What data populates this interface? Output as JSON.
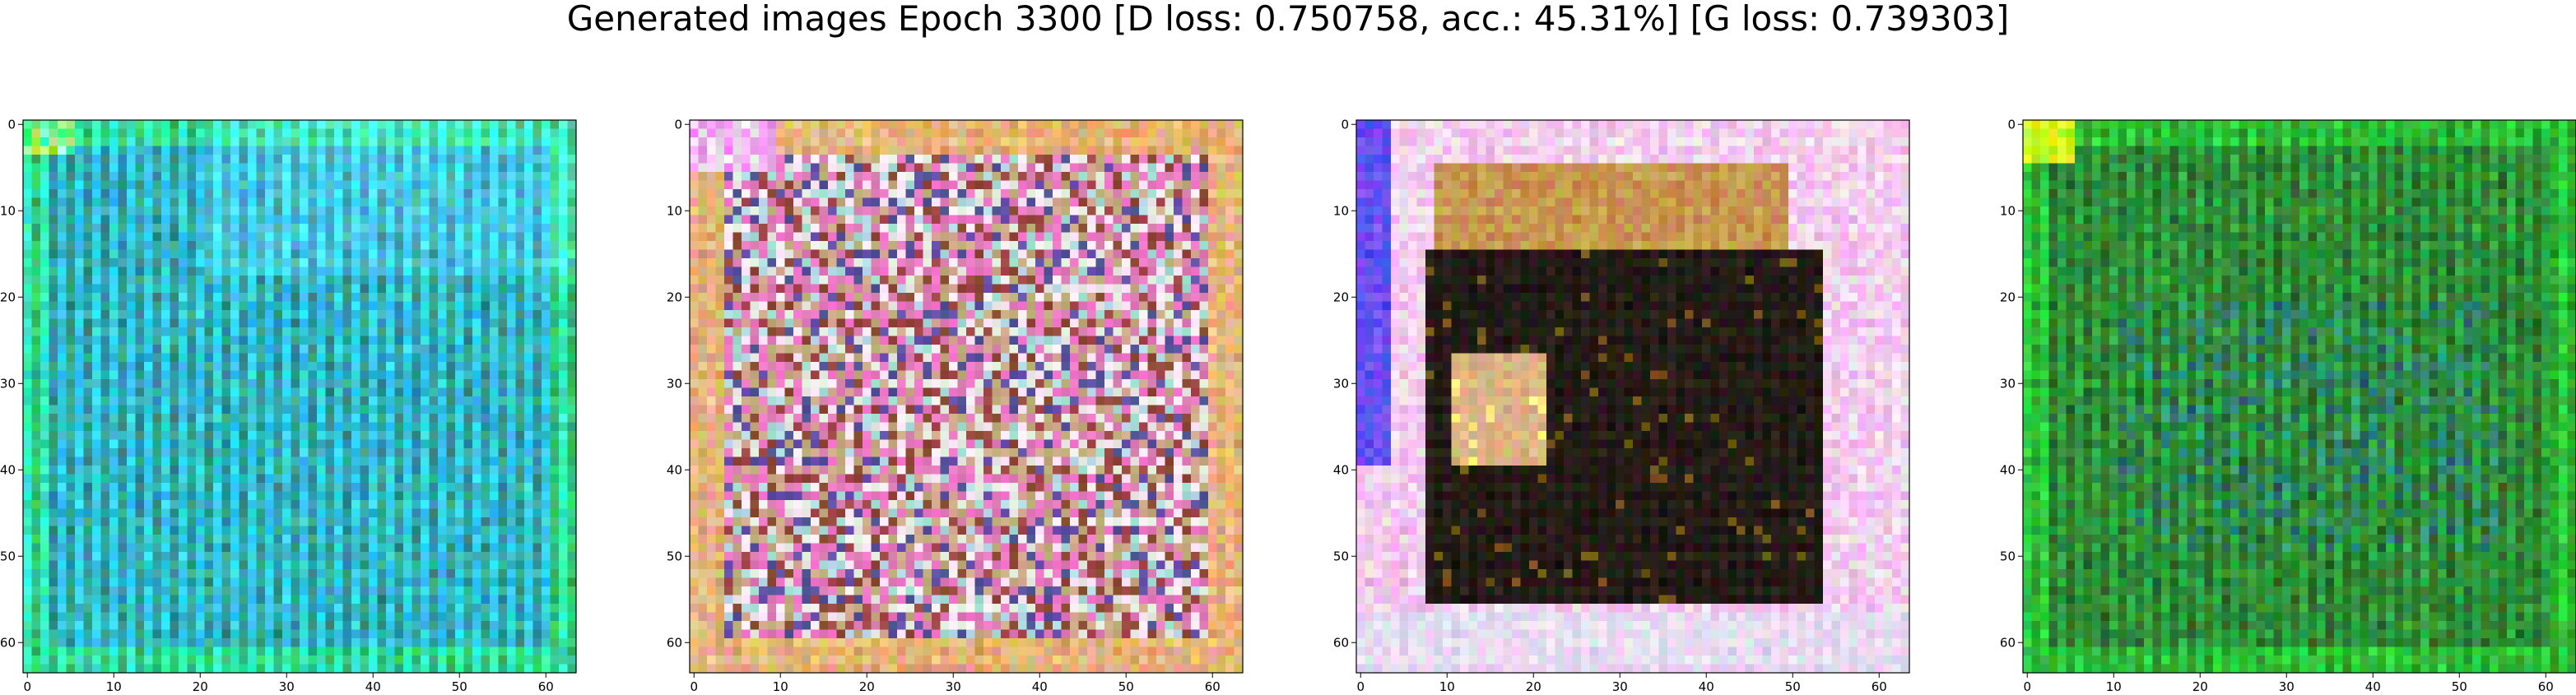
{
  "figure": {
    "title": "Generated images Epoch 3300 [D loss: 0.750758, acc.: 45.31%] [G loss: 0.739303]"
  },
  "panels": [
    {
      "name": "generated-image-1",
      "palette": "cyan-blue-green",
      "base_color": "#2a9a9a",
      "x_ticks": [
        "0",
        "10",
        "20",
        "30",
        "40",
        "50",
        "60"
      ],
      "y_ticks": [
        "0",
        "10",
        "20",
        "30",
        "40",
        "50",
        "60"
      ]
    },
    {
      "name": "generated-image-2",
      "palette": "pink-white-brown",
      "base_color": "#c9a0a0",
      "x_ticks": [
        "0",
        "10",
        "20",
        "30",
        "40",
        "50",
        "60"
      ],
      "y_ticks": [
        "0",
        "10",
        "20",
        "30",
        "40",
        "50",
        "60"
      ]
    },
    {
      "name": "generated-image-3",
      "palette": "dark-center-pink-frame",
      "base_color": "#1a1512",
      "x_ticks": [
        "0",
        "10",
        "20",
        "30",
        "40",
        "50",
        "60"
      ],
      "y_ticks": [
        "0",
        "10",
        "20",
        "30",
        "40",
        "50",
        "60"
      ]
    },
    {
      "name": "generated-image-4",
      "palette": "green",
      "base_color": "#1f8a2a",
      "x_ticks": [
        "0",
        "10",
        "20",
        "30",
        "40",
        "50",
        "60"
      ],
      "y_ticks": [
        "0",
        "10",
        "20",
        "30",
        "40",
        "50",
        "60"
      ]
    }
  ],
  "image_grid": {
    "pixels_per_side": 64,
    "tick_values": [
      0,
      10,
      20,
      30,
      40,
      50,
      60
    ]
  }
}
